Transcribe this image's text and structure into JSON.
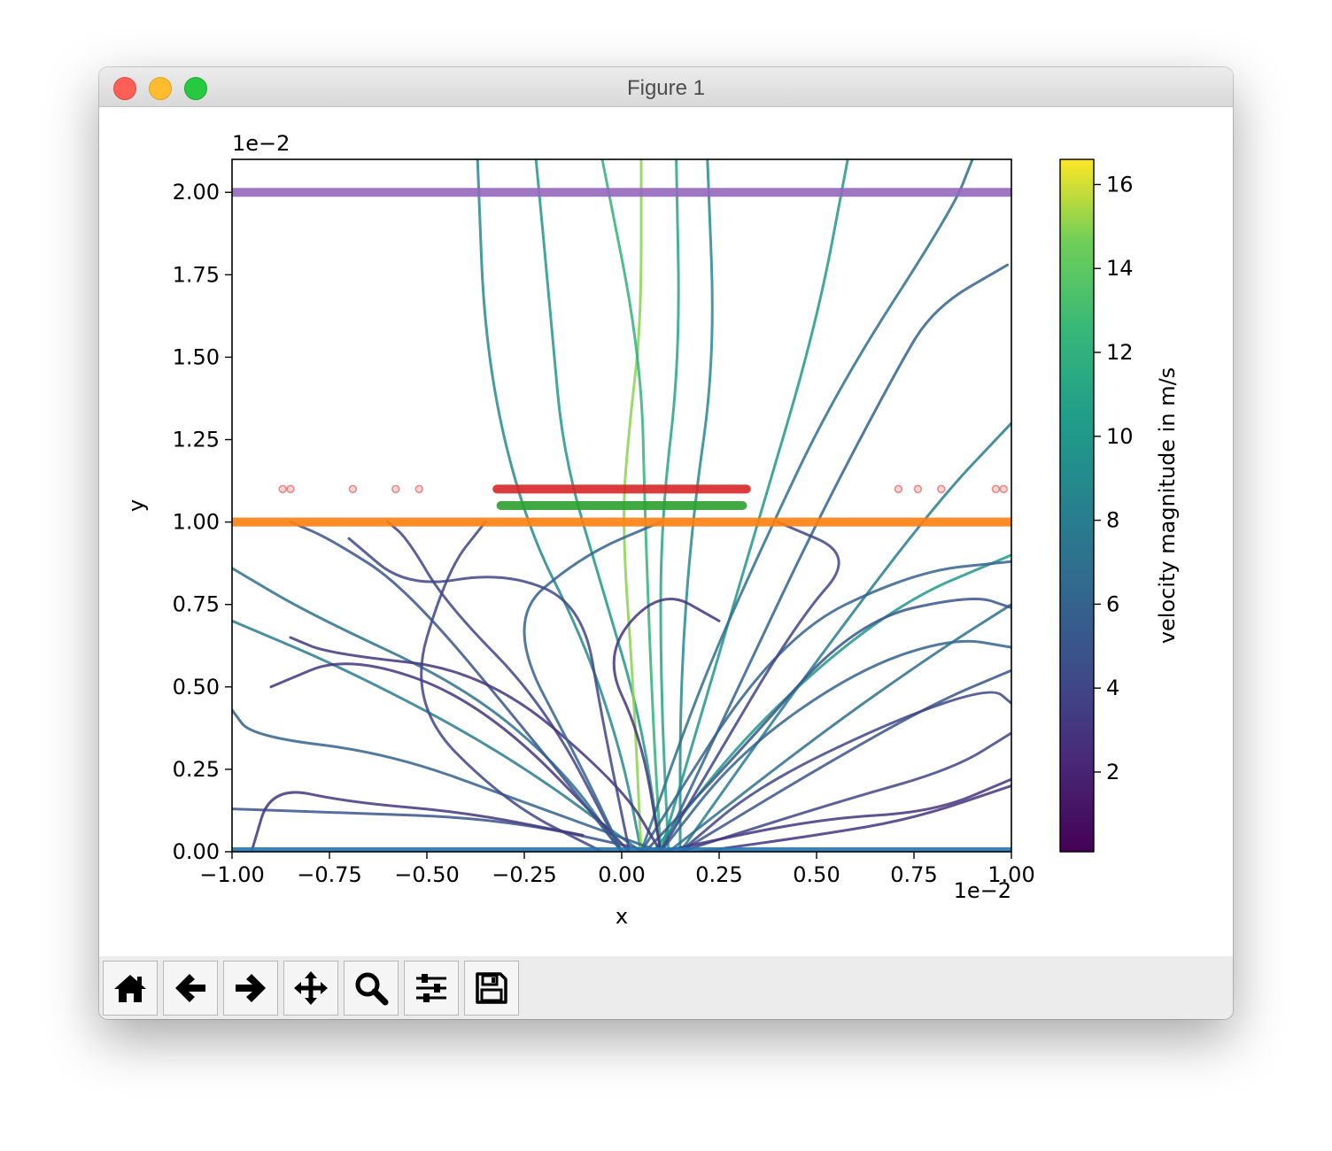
{
  "window": {
    "title": "Figure 1"
  },
  "toolbar": {
    "buttons": [
      {
        "name": "home",
        "icon": "home-icon"
      },
      {
        "name": "back",
        "icon": "arrow-left-icon"
      },
      {
        "name": "forward",
        "icon": "arrow-right-icon"
      },
      {
        "name": "pan",
        "icon": "move-icon"
      },
      {
        "name": "zoom",
        "icon": "zoom-icon"
      },
      {
        "name": "configure-subplots",
        "icon": "sliders-icon"
      },
      {
        "name": "save",
        "icon": "save-icon"
      }
    ]
  },
  "chart_data": {
    "type": "line",
    "title": "",
    "xlabel": "x",
    "ylabel": "y",
    "x_offset_text": "1e−2",
    "y_offset_text": "1e−2",
    "xlim": [
      -1.0,
      1.0
    ],
    "ylim": [
      0.0,
      2.1
    ],
    "xticks": [
      "−1.00",
      "−0.75",
      "−0.50",
      "−0.25",
      "0.00",
      "0.25",
      "0.50",
      "0.75",
      "1.00"
    ],
    "yticks": [
      "0.00",
      "0.25",
      "0.50",
      "0.75",
      "1.00",
      "1.25",
      "1.50",
      "1.75",
      "2.00"
    ],
    "grid": false,
    "colorbar": {
      "label": "velocity magnitude in m/s",
      "range": [
        0.1,
        16.6
      ],
      "ticks": [
        "2",
        "4",
        "6",
        "8",
        "10",
        "12",
        "14",
        "16"
      ],
      "colormap": "viridis"
    },
    "colors": {
      "boundary_bottom": "#1f77b4",
      "boundary_mid": "#ff7f0e",
      "electrode_green": "#2ca02c",
      "electrode_red": "#d62728",
      "boundary_top": "#9467bd"
    },
    "horizontal_bands": [
      {
        "label": "blue",
        "y": 0.0,
        "x": [
          -1.0,
          1.0
        ],
        "color": "#1f77b4"
      },
      {
        "label": "orange",
        "y": 1.0,
        "x": [
          -1.0,
          1.0
        ],
        "color": "#ff7f0e"
      },
      {
        "label": "green",
        "y": 1.05,
        "x": [
          -0.31,
          0.31
        ],
        "color": "#2ca02c"
      },
      {
        "label": "red",
        "y": 1.1,
        "x": [
          -0.32,
          0.32
        ],
        "color": "#d62728"
      },
      {
        "label": "purple",
        "y": 2.0,
        "x": [
          -1.0,
          1.0
        ],
        "color": "#9467bd"
      }
    ],
    "red_scatter_points": [
      [
        -0.87,
        1.1
      ],
      [
        -0.85,
        1.1
      ],
      [
        -0.69,
        1.1
      ],
      [
        -0.58,
        1.1
      ],
      [
        -0.52,
        1.1
      ],
      [
        0.71,
        1.1
      ],
      [
        0.76,
        1.1
      ],
      [
        0.82,
        1.1
      ],
      [
        0.96,
        1.1
      ],
      [
        0.98,
        1.1
      ]
    ],
    "trajectories": [
      {
        "points": [
          [
            0.05,
            0
          ],
          [
            0,
            0.3
          ],
          [
            -0.1,
            0.65
          ],
          [
            -0.25,
            1.0
          ],
          [
            -0.35,
            1.5
          ],
          [
            -0.37,
            2.1
          ]
        ],
        "speed": 9
      },
      {
        "points": [
          [
            0.1,
            0
          ],
          [
            0.05,
            0.4
          ],
          [
            -0.05,
            0.8
          ],
          [
            -0.15,
            1.2
          ],
          [
            -0.18,
            1.6
          ],
          [
            -0.22,
            2.1
          ]
        ],
        "speed": 10
      },
      {
        "points": [
          [
            0.05,
            0
          ],
          [
            0.03,
            0.5
          ],
          [
            0.0,
            1.0
          ],
          [
            0.02,
            1.3
          ],
          [
            0.05,
            1.6
          ],
          [
            0.05,
            2.1
          ]
        ],
        "speed": 15
      },
      {
        "points": [
          [
            0.1,
            0
          ],
          [
            0.08,
            0.4
          ],
          [
            0.06,
            1.0
          ],
          [
            0.05,
            1.5
          ],
          [
            -0.05,
            2.1
          ]
        ],
        "speed": 12
      },
      {
        "points": [
          [
            0.12,
            0
          ],
          [
            0.1,
            0.5
          ],
          [
            0.1,
            1.0
          ],
          [
            0.15,
            1.5
          ],
          [
            0.14,
            2.1
          ]
        ],
        "speed": 11
      },
      {
        "points": [
          [
            0.15,
            0
          ],
          [
            0.15,
            0.5
          ],
          [
            0.18,
            1.0
          ],
          [
            0.24,
            1.5
          ],
          [
            0.22,
            2.1
          ]
        ],
        "speed": 9
      },
      {
        "points": [
          [
            0.1,
            0
          ],
          [
            0.25,
            0.6
          ],
          [
            0.35,
            1.0
          ],
          [
            0.5,
            1.6
          ],
          [
            0.58,
            2.1
          ]
        ],
        "speed": 10
      },
      {
        "points": [
          [
            0.1,
            0
          ],
          [
            0.3,
            0.5
          ],
          [
            0.5,
            1.0
          ],
          [
            0.7,
            1.45
          ],
          [
            0.8,
            1.65
          ],
          [
            0.99,
            1.78
          ]
        ],
        "speed": 6
      },
      {
        "points": [
          [
            0.05,
            0
          ],
          [
            0.2,
            0.5
          ],
          [
            0.35,
            0.9
          ],
          [
            0.55,
            1.4
          ],
          [
            0.85,
            1.95
          ],
          [
            0.9,
            2.1
          ]
        ],
        "speed": 7
      },
      {
        "points": [
          [
            0.15,
            0
          ],
          [
            0.45,
            0.5
          ],
          [
            0.8,
            1.05
          ],
          [
            1.0,
            1.3
          ]
        ],
        "speed": 8
      },
      {
        "points": [
          [
            0.0,
            0
          ],
          [
            -0.15,
            0.25
          ],
          [
            -0.4,
            0.5
          ],
          [
            -0.8,
            0.72
          ],
          [
            -1.0,
            0.86
          ]
        ],
        "speed": 7
      },
      {
        "points": [
          [
            0.05,
            0
          ],
          [
            -0.3,
            0.3
          ],
          [
            -0.7,
            0.55
          ],
          [
            -1.0,
            0.7
          ]
        ],
        "speed": 8
      },
      {
        "points": [
          [
            0.1,
            0
          ],
          [
            -0.25,
            0.15
          ],
          [
            -0.6,
            0.3
          ],
          [
            -0.95,
            0.35
          ],
          [
            -1.0,
            0.43
          ]
        ],
        "speed": 6
      },
      {
        "points": [
          [
            0.08,
            0
          ],
          [
            -0.3,
            0.1
          ],
          [
            -0.75,
            0.12
          ],
          [
            -1.0,
            0.13
          ]
        ],
        "speed": 5
      },
      {
        "points": [
          [
            0.0,
            0
          ],
          [
            -0.2,
            0.45
          ],
          [
            -0.45,
            0.75
          ],
          [
            -0.55,
            0.95
          ],
          [
            -0.6,
            1.0
          ]
        ],
        "speed": 4
      },
      {
        "points": [
          [
            0.02,
            0
          ],
          [
            -0.35,
            0.45
          ],
          [
            -0.7,
            0.6
          ],
          [
            -0.9,
            0.5
          ]
        ],
        "speed": 3
      },
      {
        "points": [
          [
            0.1,
            0
          ],
          [
            0.3,
            0.3
          ],
          [
            0.6,
            0.55
          ],
          [
            0.85,
            0.65
          ],
          [
            1.0,
            0.62
          ]
        ],
        "speed": 6
      },
      {
        "points": [
          [
            0.12,
            0
          ],
          [
            0.5,
            0.35
          ],
          [
            0.8,
            0.6
          ],
          [
            1.0,
            0.75
          ]
        ],
        "speed": 7
      },
      {
        "points": [
          [
            0.15,
            0
          ],
          [
            0.5,
            0.25
          ],
          [
            0.8,
            0.45
          ],
          [
            1.0,
            0.55
          ]
        ],
        "speed": 5
      },
      {
        "points": [
          [
            0.15,
            0
          ],
          [
            0.55,
            0.15
          ],
          [
            0.85,
            0.25
          ],
          [
            1.0,
            0.36
          ]
        ],
        "speed": 4
      },
      {
        "points": [
          [
            0.1,
            0
          ],
          [
            0.5,
            0.1
          ],
          [
            0.8,
            0.12
          ],
          [
            1.0,
            0.22
          ]
        ],
        "speed": 3
      },
      {
        "points": [
          [
            0.08,
            0
          ],
          [
            0.35,
            0.4
          ],
          [
            0.7,
            0.75
          ],
          [
            1.0,
            0.9
          ]
        ],
        "speed": 10
      },
      {
        "points": [
          [
            0.05,
            0
          ],
          [
            0.4,
            0.65
          ],
          [
            0.75,
            0.85
          ],
          [
            1.0,
            0.88
          ]
        ],
        "speed": 6
      },
      {
        "points": [
          [
            -0.05,
            0
          ],
          [
            -0.3,
            0.15
          ],
          [
            -0.55,
            0.45
          ],
          [
            -0.45,
            0.85
          ],
          [
            -0.35,
            1.0
          ]
        ],
        "speed": 4
      },
      {
        "points": [
          [
            0.0,
            0
          ],
          [
            -0.2,
            0.3
          ],
          [
            -0.55,
            0.8
          ],
          [
            -0.75,
            0.95
          ],
          [
            -0.85,
            1.0
          ]
        ],
        "speed": 5
      },
      {
        "points": [
          [
            0.1,
            0
          ],
          [
            0.0,
            0.2
          ],
          [
            -0.35,
            0.55
          ],
          [
            -0.75,
            0.6
          ],
          [
            -0.85,
            0.65
          ]
        ],
        "speed": 3
      },
      {
        "points": [
          [
            0.06,
            0
          ],
          [
            0.3,
            0.3
          ],
          [
            0.6,
            0.7
          ],
          [
            0.9,
            0.78
          ],
          [
            1.0,
            0.74
          ]
        ],
        "speed": 5
      },
      {
        "points": [
          [
            0.1,
            0
          ],
          [
            0.2,
            0.2
          ],
          [
            0.45,
            0.7
          ],
          [
            0.6,
            0.9
          ],
          [
            0.4,
            1.0
          ]
        ],
        "speed": 4
      },
      {
        "points": [
          [
            0.0,
            0
          ],
          [
            -0.1,
            0.25
          ],
          [
            -0.3,
            0.7
          ],
          [
            -0.1,
            0.9
          ],
          [
            0.1,
            1.0
          ]
        ],
        "speed": 6
      },
      {
        "points": [
          [
            0.02,
            0
          ],
          [
            -0.05,
            0.4
          ],
          [
            -0.1,
            0.75
          ],
          [
            -0.3,
            0.85
          ],
          [
            -0.55,
            0.8
          ],
          [
            -0.7,
            0.95
          ]
        ],
        "speed": 4
      },
      {
        "points": [
          [
            0.1,
            0
          ],
          [
            0.05,
            0.35
          ],
          [
            -0.05,
            0.6
          ],
          [
            0.1,
            0.8
          ],
          [
            0.25,
            0.7
          ]
        ],
        "speed": 3
      },
      {
        "points": [
          [
            0.15,
            0
          ],
          [
            0.35,
            0.2
          ],
          [
            0.7,
            0.4
          ],
          [
            0.95,
            0.5
          ],
          [
            1.0,
            0.45
          ]
        ],
        "speed": 4
      },
      {
        "points": [
          [
            -0.95,
            0
          ],
          [
            -0.9,
            0.2
          ],
          [
            -0.7,
            0.15
          ],
          [
            -0.4,
            0.12
          ],
          [
            -0.1,
            0.05
          ]
        ],
        "speed": 3
      },
      {
        "points": [
          [
            0.2,
            0
          ],
          [
            0.5,
            0.05
          ],
          [
            0.75,
            0.1
          ],
          [
            1.0,
            0.2
          ]
        ],
        "speed": 3
      }
    ]
  }
}
